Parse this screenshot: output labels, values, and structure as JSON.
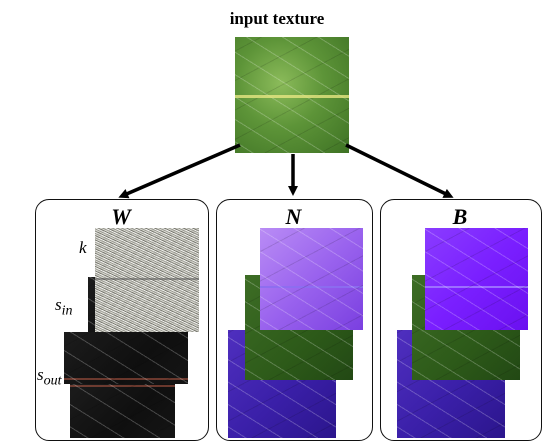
{
  "diagram": {
    "title": "input texture",
    "panels": [
      {
        "id": "W",
        "label": "W"
      },
      {
        "id": "N",
        "label": "N"
      },
      {
        "id": "B",
        "label": "B"
      }
    ],
    "w_labels": {
      "k": "k",
      "s_in_base": "s",
      "s_in_sub": "in",
      "s_out_base": "s",
      "s_out_sub": "out"
    }
  }
}
